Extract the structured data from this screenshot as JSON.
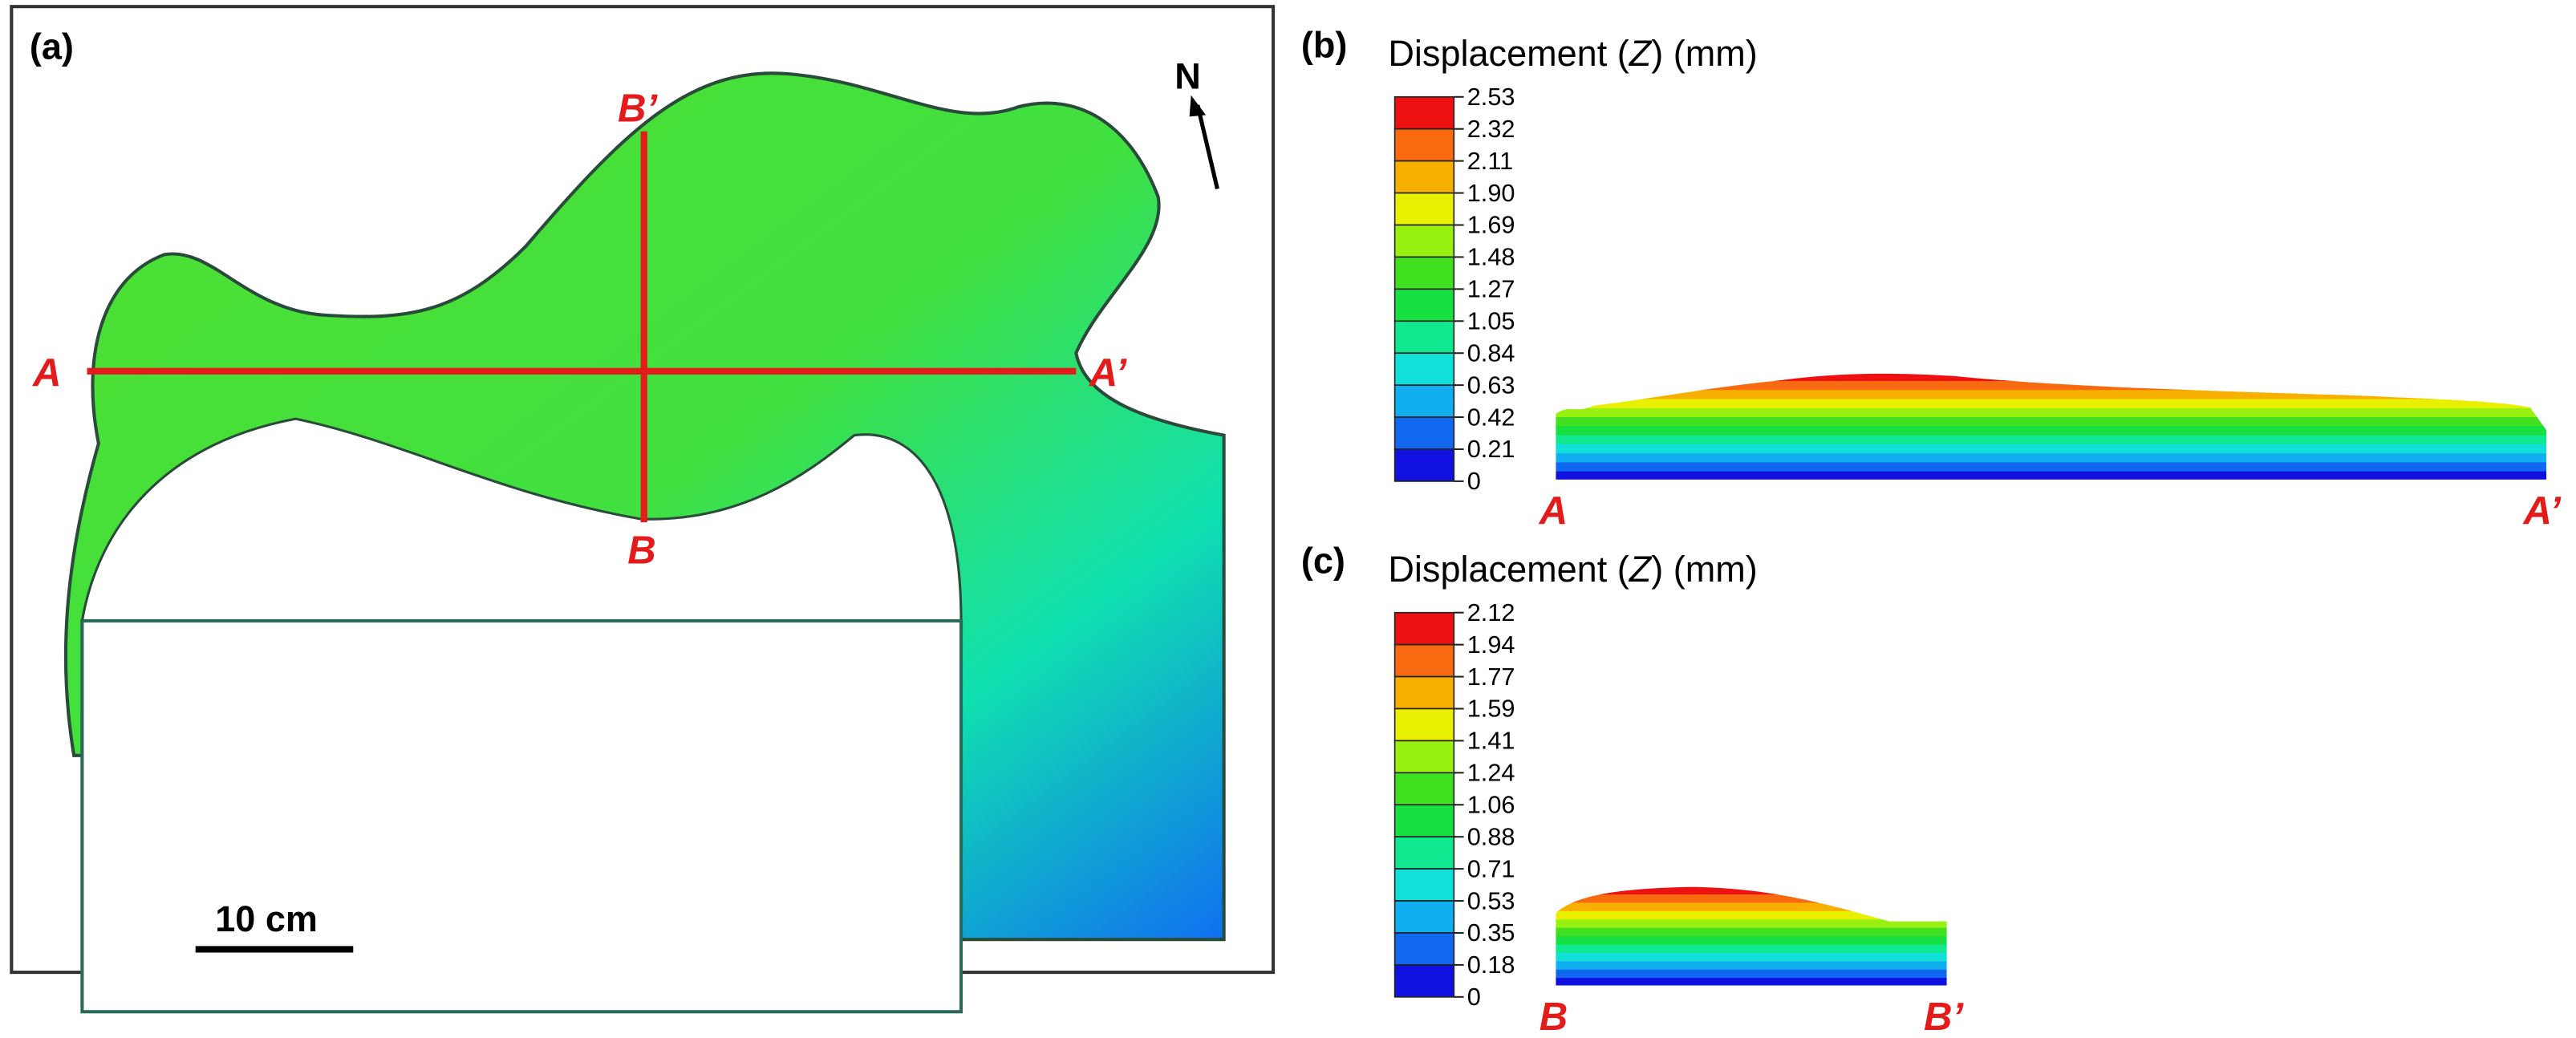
{
  "panel_a": {
    "label": "(a)",
    "sections": {
      "A": "A",
      "A_end": "A’",
      "B": "B",
      "B_end": "B’"
    },
    "north": "N",
    "scale_bar": "10 cm"
  },
  "band_colors": [
    "#1010e0",
    "#1068f0",
    "#10b0f0",
    "#10e0d8",
    "#10e890",
    "#18e040",
    "#40e020",
    "#98f010",
    "#e8f000",
    "#f8b000",
    "#f86a10",
    "#ee1111"
  ],
  "panel_b": {
    "label": "(b)",
    "title_parts": [
      "Displacement (",
      "Z",
      ") (mm)"
    ],
    "ticks": [
      "2.53",
      "2.32",
      "2.11",
      "1.90",
      "1.69",
      "1.48",
      "1.27",
      "1.05",
      "0.84",
      "0.63",
      "0.42",
      "0.21",
      "0"
    ],
    "ends": [
      "A",
      "A’"
    ]
  },
  "panel_c": {
    "label": "(c)",
    "title_parts": [
      "Displacement (",
      "Z",
      ") (mm)"
    ],
    "ticks": [
      "2.12",
      "1.94",
      "1.77",
      "1.59",
      "1.41",
      "1.24",
      "1.06",
      "0.88",
      "0.71",
      "0.53",
      "0.35",
      "0.18",
      "0"
    ],
    "ends": [
      "B",
      "B’"
    ]
  }
}
